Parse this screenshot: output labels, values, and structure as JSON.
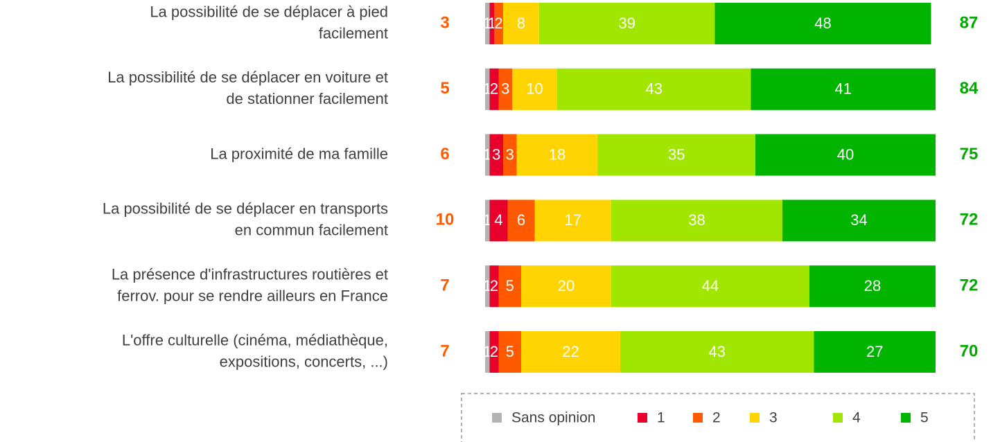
{
  "chart_data": {
    "type": "stacked_bar_horizontal",
    "categories": [
      [
        "La possibilité de se déplacer à pied",
        "facilement"
      ],
      [
        "La possibilité de se déplacer en voiture et",
        "de stationner facilement"
      ],
      [
        "La proximité de ma famille"
      ],
      [
        "La possibilité de se déplacer en transports",
        "en commun facilement"
      ],
      [
        "La présence d'infrastructures routières et",
        "ferrov. pour se rendre ailleurs en France"
      ],
      [
        "L'offre culturelle (cinéma, médiathèque,",
        "expositions, concerts, ...)"
      ]
    ],
    "series": [
      {
        "name": "Sans opinion",
        "color": "#b3b3b3",
        "values": [
          1,
          1,
          1,
          1,
          1,
          1
        ]
      },
      {
        "name": "1",
        "color": "#e8002a",
        "values": [
          1,
          2,
          3,
          4,
          2,
          2
        ]
      },
      {
        "name": "2",
        "color": "#ff5a00",
        "values": [
          2,
          3,
          3,
          6,
          5,
          5
        ]
      },
      {
        "name": "3",
        "color": "#ffd400",
        "values": [
          8,
          10,
          18,
          17,
          20,
          22
        ]
      },
      {
        "name": "4",
        "color": "#a0e600",
        "values": [
          39,
          43,
          35,
          38,
          44,
          43
        ]
      },
      {
        "name": "5",
        "color": "#00b400",
        "values": [
          48,
          41,
          40,
          34,
          28,
          27
        ]
      }
    ],
    "left_totals": {
      "color": "#ff5a00",
      "values": [
        3,
        5,
        6,
        10,
        7,
        7
      ]
    },
    "right_totals": {
      "color": "#00a800",
      "values": [
        87,
        84,
        75,
        72,
        72,
        70
      ]
    }
  }
}
